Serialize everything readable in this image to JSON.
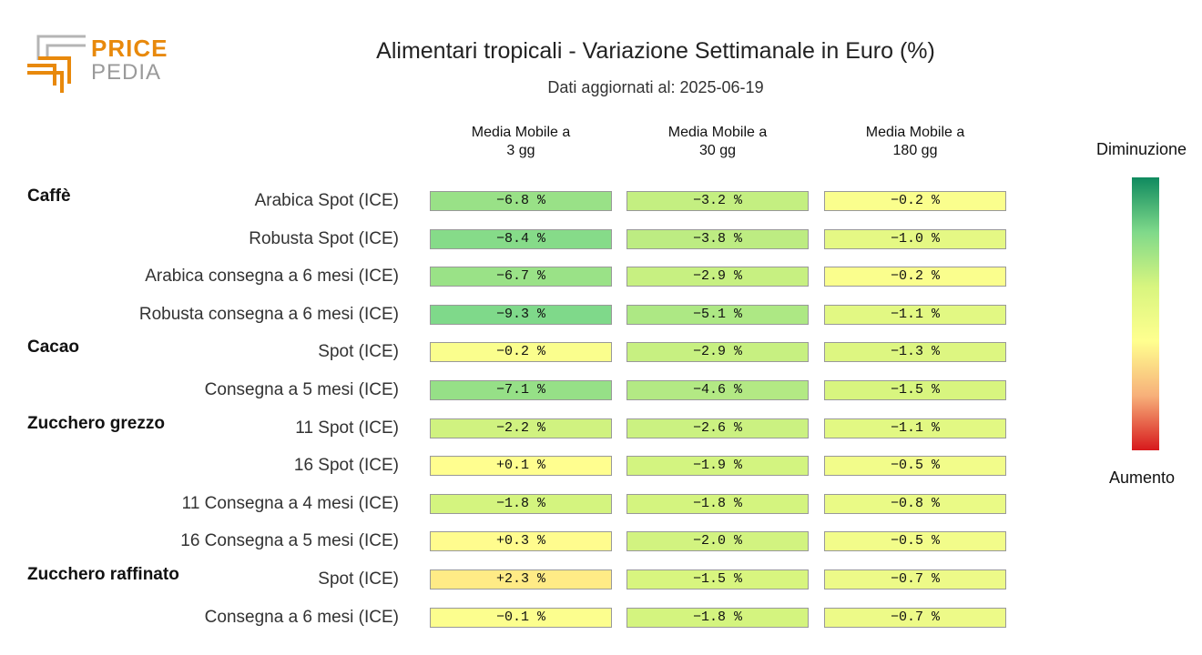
{
  "logo": {
    "line1": "PRICE",
    "line2": "PEDIA"
  },
  "title": "Alimentari tropicali - Variazione Settimanale in Euro (%)",
  "subtitle": "Dati aggiornati al: 2025-06-19",
  "legend": {
    "top": "Diminuzione",
    "bottom": "Aumento",
    "colors": [
      "#0f8a5f",
      "#7fd98a",
      "#d8f57f",
      "#ffff8f",
      "#f7b07a",
      "#d7191c"
    ]
  },
  "chart_data": {
    "type": "table",
    "title": "Alimentari tropicali - Variazione Settimanale in Euro (%)",
    "subtitle": "Dati aggiornati al: 2025-06-19",
    "columns": [
      {
        "line1": "Media Mobile a",
        "line2": "3 gg"
      },
      {
        "line1": "Media Mobile a",
        "line2": "30 gg"
      },
      {
        "line1": "Media Mobile a",
        "line2": "180 gg"
      }
    ],
    "groups": [
      {
        "name": "Caffè",
        "rows": [
          {
            "label": "Arabica Spot (ICE)",
            "values": [
              -6.8,
              -3.2,
              -0.2
            ]
          },
          {
            "label": "Robusta Spot (ICE)",
            "values": [
              -8.4,
              -3.8,
              -1.0
            ]
          },
          {
            "label": "Arabica consegna a 6 mesi (ICE)",
            "values": [
              -6.7,
              -2.9,
              -0.2
            ]
          },
          {
            "label": "Robusta consegna a 6 mesi (ICE)",
            "values": [
              -9.3,
              -5.1,
              -1.1
            ]
          }
        ]
      },
      {
        "name": "Cacao",
        "rows": [
          {
            "label": "Spot (ICE)",
            "values": [
              -0.2,
              -2.9,
              -1.3
            ]
          },
          {
            "label": "Consegna a 5 mesi (ICE)",
            "values": [
              -7.1,
              -4.6,
              -1.5
            ]
          }
        ]
      },
      {
        "name": "Zucchero grezzo",
        "rows": [
          {
            "label": "11 Spot (ICE)",
            "values": [
              -2.2,
              -2.6,
              -1.1
            ]
          },
          {
            "label": "16 Spot (ICE)",
            "values": [
              0.1,
              -1.9,
              -0.5
            ]
          },
          {
            "label": "11 Consegna a 4 mesi (ICE)",
            "values": [
              -1.8,
              -1.8,
              -0.8
            ]
          },
          {
            "label": "16 Consegna a 5 mesi (ICE)",
            "values": [
              0.3,
              -2.0,
              -0.5
            ]
          }
        ]
      },
      {
        "name": "Zucchero raffinato",
        "rows": [
          {
            "label": "Spot (ICE)",
            "values": [
              2.3,
              -1.5,
              -0.7
            ]
          },
          {
            "label": "Consegna a 6 mesi (ICE)",
            "values": [
              -0.1,
              -1.8,
              -0.7
            ]
          }
        ]
      }
    ]
  }
}
